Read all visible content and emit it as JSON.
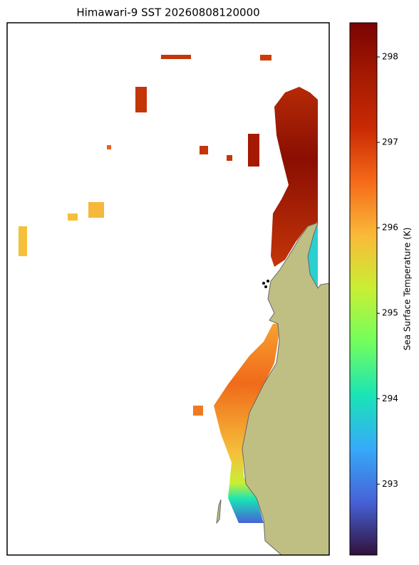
{
  "title": "Himawari-9 SST 20260808120000",
  "colorbar": {
    "label": "Sea Surface Temperature (K)",
    "lim": [
      292.17,
      298.4
    ],
    "ticks": [
      293,
      294,
      295,
      296,
      297,
      298
    ]
  }
}
